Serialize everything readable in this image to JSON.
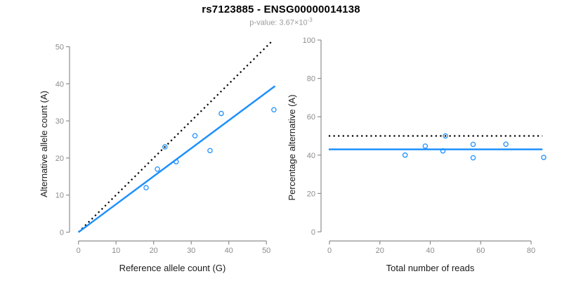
{
  "header": {
    "title": "rs7123885 - ENSG00000014138",
    "pvalue_text": "p-value: 3.67×10",
    "pvalue_exponent": "-3"
  },
  "colors": {
    "accent_blue": "#1e90ff",
    "dotted_line_black": "#000000",
    "axis_line_gray": "#8e8e8e",
    "tick_label_gray": "#8c8c8c",
    "axis_title_black": "#1a1a1a",
    "subtitle_gray": "#9b9b9b",
    "background": "#ffffff"
  },
  "chart_data": [
    {
      "type": "scatter",
      "name": "allele-counts-scatter",
      "xlabel": "Reference allele count (G)",
      "ylabel": "Alternative allele count (A)",
      "xlim": [
        0,
        50
      ],
      "ylim": [
        0,
        50
      ],
      "xticks": [
        0,
        10,
        20,
        30,
        40,
        50
      ],
      "yticks": [
        0,
        10,
        20,
        30,
        40,
        50
      ],
      "grid": false,
      "marker": "open-circle",
      "points": [
        [
          18,
          12
        ],
        [
          21,
          17
        ],
        [
          23,
          23
        ],
        [
          26,
          19
        ],
        [
          31,
          26
        ],
        [
          35,
          22
        ],
        [
          38,
          32
        ],
        [
          52,
          33
        ]
      ],
      "lines": [
        {
          "name": "identity-line",
          "style": "dotted",
          "color": "#000000",
          "x1": 0,
          "y1": 0,
          "x2": 51.6,
          "y2": 51.6
        },
        {
          "name": "fit-line",
          "style": "solid",
          "color": "#1e90ff",
          "x1": 0,
          "y1": 0,
          "x2": 52.3,
          "y2": 39.4
        }
      ]
    },
    {
      "type": "scatter",
      "name": "percentage-vs-reads-scatter",
      "xlabel": "Total number of reads",
      "ylabel": "Percentage alternative (A)",
      "xlim": [
        0,
        80
      ],
      "ylim": [
        0,
        100
      ],
      "xticks": [
        0,
        20,
        40,
        60,
        80
      ],
      "yticks": [
        0,
        20,
        40,
        60,
        80,
        100
      ],
      "grid": false,
      "marker": "open-circle",
      "points": [
        [
          30,
          40.0
        ],
        [
          38,
          44.7
        ],
        [
          45,
          42.2
        ],
        [
          46,
          50.0
        ],
        [
          57,
          38.6
        ],
        [
          57,
          45.6
        ],
        [
          70,
          45.7
        ],
        [
          85,
          38.8
        ]
      ],
      "lines": [
        {
          "name": "fifty-percent-line",
          "style": "dotted",
          "color": "#000000",
          "x1": -0.3,
          "y1": 50,
          "x2": 84.5,
          "y2": 50
        },
        {
          "name": "mean-percentage-line",
          "style": "solid",
          "color": "#1e90ff",
          "x1": -0.3,
          "y1": 43,
          "x2": 84.5,
          "y2": 43
        }
      ]
    }
  ]
}
